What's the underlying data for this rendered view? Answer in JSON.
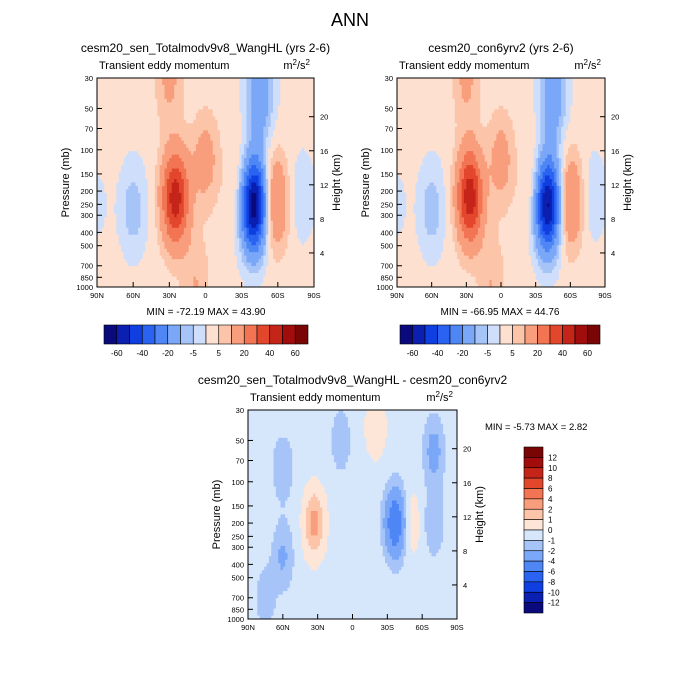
{
  "figure_title": "ANN",
  "chart_data": [
    {
      "type": "heatmap",
      "title": "cesm20_sen_Totalmodv9v8_WangHL (yrs 2-6)",
      "subtitle_left": "Transient eddy momentum",
      "units": "m²/s²",
      "units_base": "m",
      "units_sup1": "2",
      "units_mid": "/s",
      "units_sup2": "2",
      "xlabel": "",
      "ylabel": "Pressure (mb)",
      "ylabel_right": "Height (km)",
      "x_ticks": [
        "90N",
        "60N",
        "30N",
        "0",
        "30S",
        "60S",
        "90S"
      ],
      "y_ticks": [
        "30",
        "50",
        "70",
        "100",
        "150",
        "200",
        "250",
        "300",
        "400",
        "500",
        "700",
        "850",
        "1000"
      ],
      "y_ticks_right": [
        "20",
        "16",
        "12",
        "8",
        "4"
      ],
      "min_label": "MIN = -72.19",
      "max_label": "MAX =  43.90",
      "colorbar_labels": [
        "-60",
        "-40",
        "-20",
        "-5",
        "5",
        "20",
        "40",
        "60"
      ],
      "blobs": [
        {
          "lat": 25,
          "p": 225,
          "value": 43.9
        },
        {
          "lat": 0,
          "p": 120,
          "value": 12
        },
        {
          "lat": 30,
          "p": 30,
          "value": 10
        },
        {
          "lat": -57,
          "p": 240,
          "value": 22
        },
        {
          "lat": -30,
          "p": 200,
          "value": 10
        },
        {
          "lat": -40,
          "p": 250,
          "value": -72.19
        },
        {
          "lat": -45,
          "p": 40,
          "value": -20
        },
        {
          "lat": -80,
          "p": 220,
          "value": -6
        },
        {
          "lat": 60,
          "p": 270,
          "value": -10
        },
        {
          "lat": 8,
          "p": 950,
          "value": 8
        },
        {
          "lat": 90,
          "p": 250,
          "value": -3
        }
      ]
    },
    {
      "type": "heatmap",
      "title": "cesm20_con6yrv2 (yrs 2-6)",
      "subtitle_left": "Transient eddy momentum",
      "units": "m²/s²",
      "units_base": "m",
      "units_sup1": "2",
      "units_mid": "/s",
      "units_sup2": "2",
      "xlabel": "",
      "ylabel": "Pressure (mb)",
      "ylabel_right": "Height (km)",
      "x_ticks": [
        "90N",
        "60N",
        "30N",
        "0",
        "30S",
        "60S",
        "90S"
      ],
      "y_ticks": [
        "30",
        "50",
        "70",
        "100",
        "150",
        "200",
        "250",
        "300",
        "400",
        "500",
        "700",
        "850",
        "1000"
      ],
      "y_ticks_right": [
        "20",
        "16",
        "12",
        "8",
        "4"
      ],
      "min_label": "MIN = -66.95",
      "max_label": "MAX =  44.76",
      "colorbar_labels": [
        "-60",
        "-40",
        "-20",
        "-5",
        "5",
        "20",
        "40",
        "60"
      ],
      "blobs": [
        {
          "lat": 27,
          "p": 220,
          "value": 44.76
        },
        {
          "lat": 0,
          "p": 120,
          "value": 12
        },
        {
          "lat": 30,
          "p": 30,
          "value": 10
        },
        {
          "lat": -60,
          "p": 240,
          "value": 20
        },
        {
          "lat": -30,
          "p": 200,
          "value": 10
        },
        {
          "lat": -40,
          "p": 250,
          "value": -66.95
        },
        {
          "lat": -45,
          "p": 40,
          "value": -20
        },
        {
          "lat": -80,
          "p": 220,
          "value": -6
        },
        {
          "lat": 60,
          "p": 270,
          "value": -10
        },
        {
          "lat": 8,
          "p": 950,
          "value": 8
        },
        {
          "lat": 90,
          "p": 250,
          "value": -3
        }
      ]
    },
    {
      "type": "heatmap",
      "title": "cesm20_sen_Totalmodv9v8_WangHL - cesm20_con6yrv2",
      "subtitle_left": "Transient eddy momentum",
      "units": "m²/s²",
      "units_base": "m",
      "units_sup1": "2",
      "units_mid": "/s",
      "units_sup2": "2",
      "xlabel": "",
      "ylabel": "Pressure (mb)",
      "ylabel_right": "Height (km)",
      "x_ticks": [
        "90N",
        "60N",
        "30N",
        "0",
        "30S",
        "60S",
        "90S"
      ],
      "y_ticks": [
        "30",
        "50",
        "70",
        "100",
        "150",
        "200",
        "250",
        "300",
        "400",
        "500",
        "700",
        "850",
        "1000"
      ],
      "y_ticks_right": [
        "20",
        "16",
        "12",
        "8",
        "4"
      ],
      "min_label": "MIN =  -5.73",
      "max_label": "MAX =   2.82",
      "colorbar_labels": [
        "12",
        "10",
        "8",
        "6",
        "4",
        "2",
        "1",
        "0",
        "-1",
        "-2",
        "-4",
        "-6",
        "-8",
        "-10",
        "-12"
      ],
      "blobs": [
        {
          "lat": -37,
          "p": 200,
          "value": -5.73
        },
        {
          "lat": 33,
          "p": 200,
          "value": 2.82
        },
        {
          "lat": 60,
          "p": 80,
          "value": -1.5
        },
        {
          "lat": 60,
          "p": 350,
          "value": -1.8
        },
        {
          "lat": -70,
          "p": 60,
          "value": -2.2
        },
        {
          "lat": -70,
          "p": 200,
          "value": -1.5
        },
        {
          "lat": 10,
          "p": 50,
          "value": -1.3
        },
        {
          "lat": -20,
          "p": 40,
          "value": 1.2
        },
        {
          "lat": -50,
          "p": 200,
          "value": 1.3
        },
        {
          "lat": 75,
          "p": 700,
          "value": -1.2
        }
      ]
    }
  ]
}
